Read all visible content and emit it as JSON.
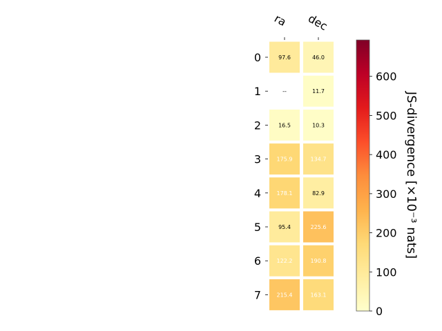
{
  "chart_data": {
    "type": "heatmap",
    "x_categories": [
      "ra",
      "dec"
    ],
    "y_categories": [
      "0",
      "1",
      "2",
      "3",
      "4",
      "5",
      "6",
      "7"
    ],
    "values": [
      [
        97.6,
        46.0
      ],
      [
        null,
        11.7
      ],
      [
        16.5,
        10.3
      ],
      [
        175.9,
        134.7
      ],
      [
        178.1,
        82.9
      ],
      [
        95.4,
        225.6
      ],
      [
        122.2,
        190.8
      ],
      [
        215.4,
        163.1
      ]
    ],
    "cell_labels": [
      [
        "97.6",
        "46.0"
      ],
      [
        "--",
        "11.7"
      ],
      [
        "16.5",
        "10.3"
      ],
      [
        "175.9",
        "134.7"
      ],
      [
        "178.1",
        "82.9"
      ],
      [
        "95.4",
        "225.6"
      ],
      [
        "122.2",
        "190.8"
      ],
      [
        "215.4",
        "163.1"
      ]
    ],
    "colorbar": {
      "label": "JS-divergence [×10⁻³ nats]",
      "range": [
        0,
        693
      ],
      "ticks": [
        "0",
        "100",
        "200",
        "300",
        "400",
        "500",
        "600"
      ],
      "tick_values": [
        0,
        100,
        200,
        300,
        400,
        500,
        600
      ],
      "colormap": "YlOrRd"
    },
    "text_colors": {
      "dark": "#000000",
      "light": "#ffffff"
    },
    "label_threshold": 120
  }
}
